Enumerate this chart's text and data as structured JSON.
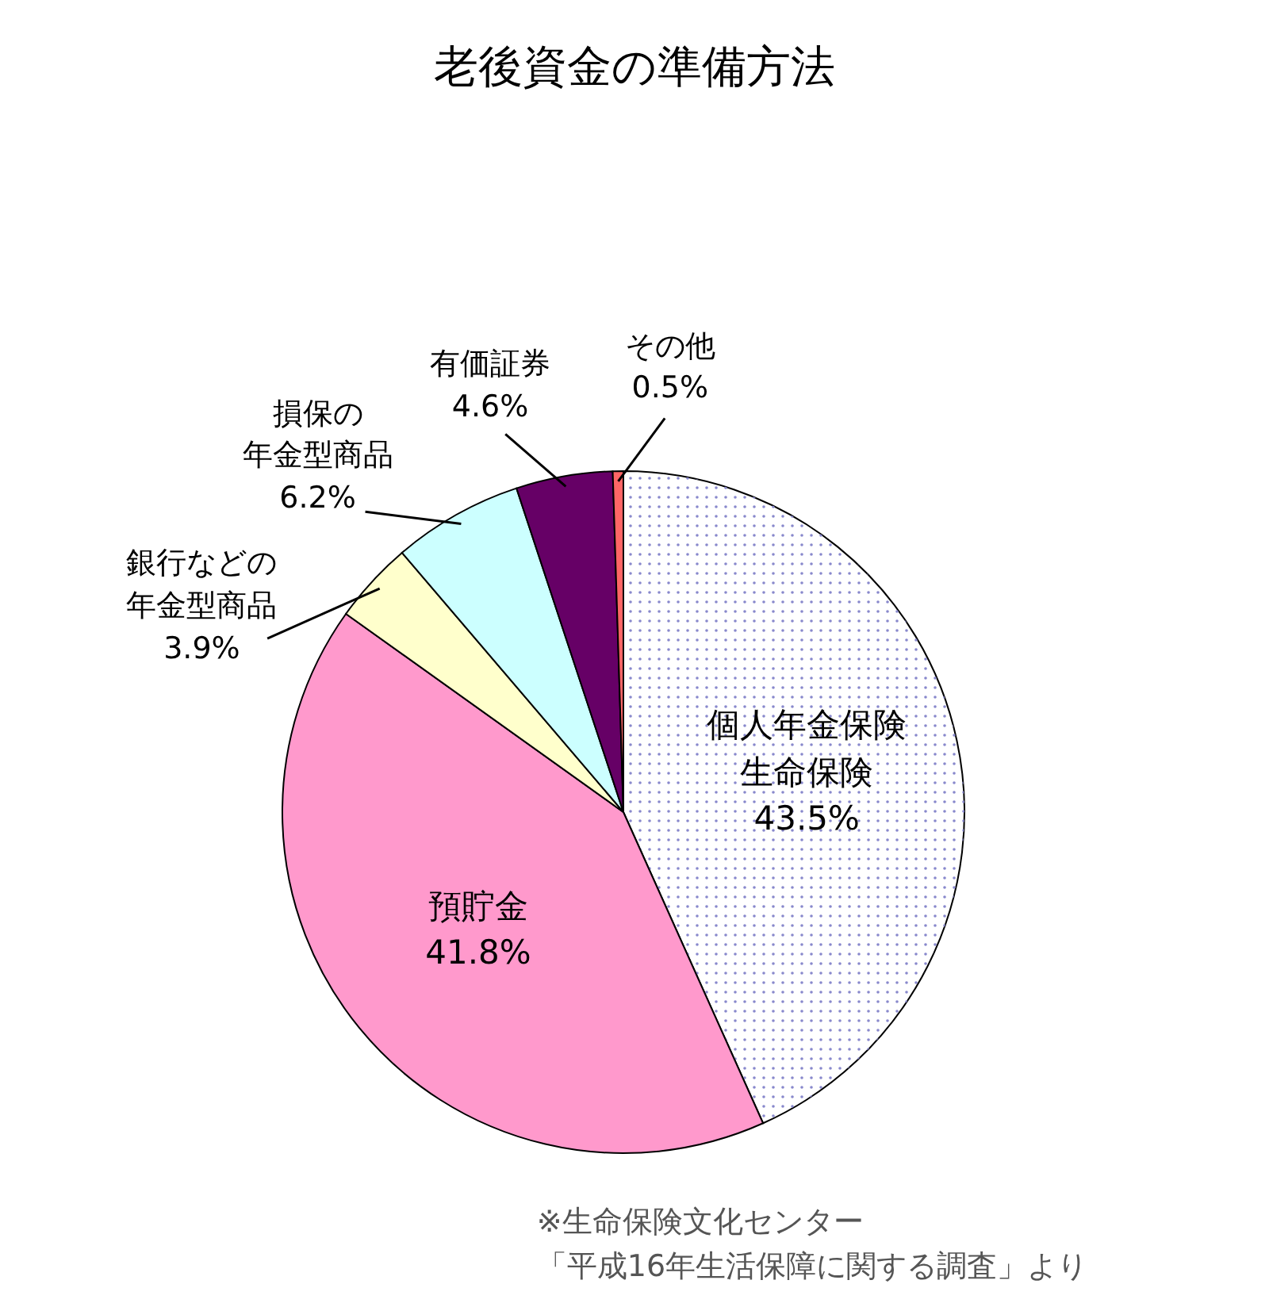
{
  "chart_data": {
    "type": "pie",
    "title": "老後資金の準備方法",
    "categories": [
      "個人年金保険生命保険",
      "預貯金",
      "銀行などの年金型商品",
      "損保の年金型商品",
      "有価証券",
      "その他"
    ],
    "values": [
      43.5,
      41.8,
      3.9,
      6.2,
      4.6,
      0.5
    ],
    "value_labels": [
      "43.5%",
      "41.8%",
      "3.9%",
      "6.2%",
      "4.6%",
      "0.5%"
    ],
    "colors": [
      "#ffffff",
      "#ff99cc",
      "#ffffcc",
      "#ccffff",
      "#660066",
      "#ff6666"
    ],
    "annotations": [
      "※生命保険文化センター「平成16年生活保障に関する調査」より"
    ]
  }
}
